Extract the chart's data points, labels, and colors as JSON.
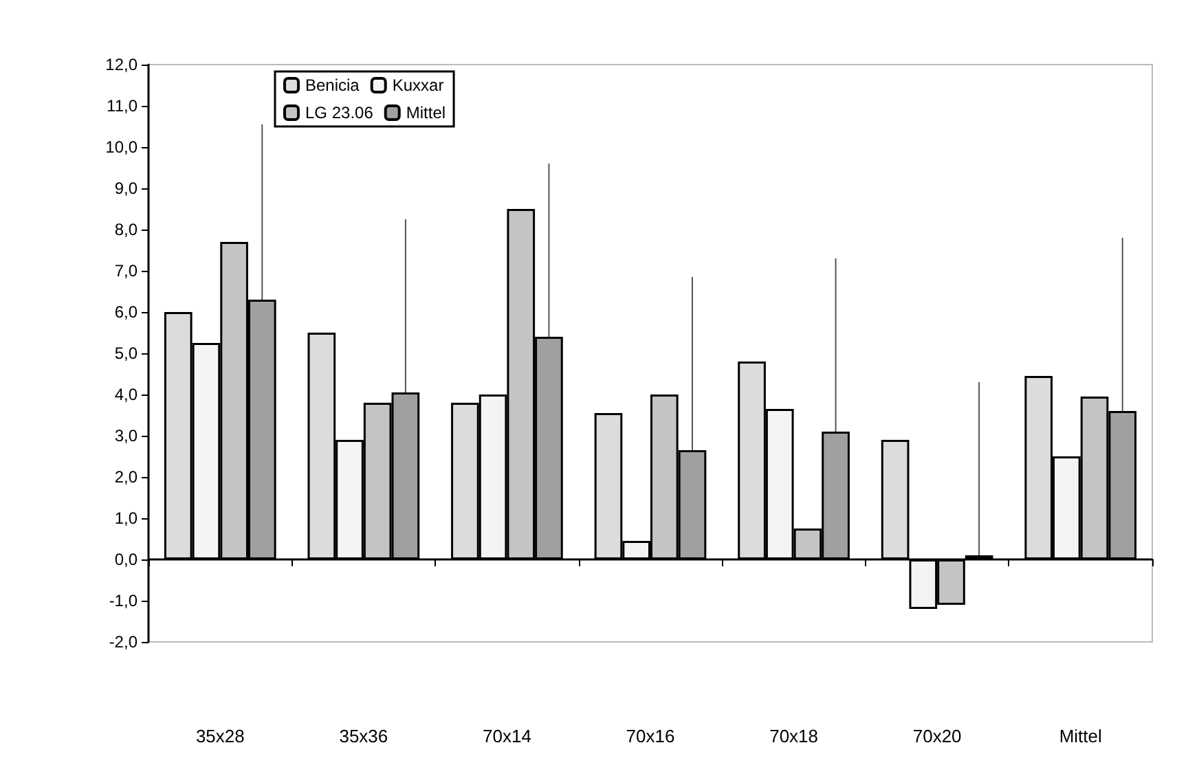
{
  "chart_data": {
    "type": "bar",
    "categories": [
      "35x28",
      "35x36",
      "70x14",
      "70x16",
      "70x18",
      "70x20",
      "Mittel"
    ],
    "series": [
      {
        "name": "Benicia",
        "color": "#dcdcdc",
        "values": [
          6.0,
          5.5,
          3.8,
          3.55,
          4.8,
          2.9,
          4.45
        ]
      },
      {
        "name": "Kuxxar",
        "color": "#f4f4f4",
        "values": [
          5.25,
          2.9,
          4.0,
          0.45,
          3.65,
          -1.2,
          2.5
        ]
      },
      {
        "name": "LG 23.06",
        "color": "#c4c4c4",
        "values": [
          7.7,
          3.8,
          8.5,
          4.0,
          0.75,
          -1.1,
          3.95
        ]
      },
      {
        "name": "Mittel",
        "color": "#a0a0a0",
        "values": [
          6.3,
          4.05,
          5.4,
          2.65,
          3.1,
          0.1,
          3.6
        ],
        "errors": [
          [
            6.3,
            10.55
          ],
          [
            4.05,
            8.25
          ],
          [
            5.4,
            9.6
          ],
          [
            2.65,
            6.85
          ],
          [
            3.1,
            7.3
          ],
          [
            0.1,
            4.3
          ],
          [
            3.6,
            7.8
          ]
        ]
      }
    ],
    "ylim": [
      -2,
      12
    ],
    "yticks": [
      {
        "value": -2,
        "label": "-2,0"
      },
      {
        "value": -1,
        "label": "-1,0"
      },
      {
        "value": 0,
        "label": "0,0"
      },
      {
        "value": 1,
        "label": "1,0"
      },
      {
        "value": 2,
        "label": "2,0"
      },
      {
        "value": 3,
        "label": "3,0"
      },
      {
        "value": 4,
        "label": "4,0"
      },
      {
        "value": 5,
        "label": "5,0"
      },
      {
        "value": 6,
        "label": "6,0"
      },
      {
        "value": 7,
        "label": "7,0"
      },
      {
        "value": 8,
        "label": "8,0"
      },
      {
        "value": 9,
        "label": "9,0"
      },
      {
        "value": 10,
        "label": "10,0"
      },
      {
        "value": 11,
        "label": "11,0"
      },
      {
        "value": 12,
        "label": "12,0"
      }
    ],
    "legend": "top"
  }
}
